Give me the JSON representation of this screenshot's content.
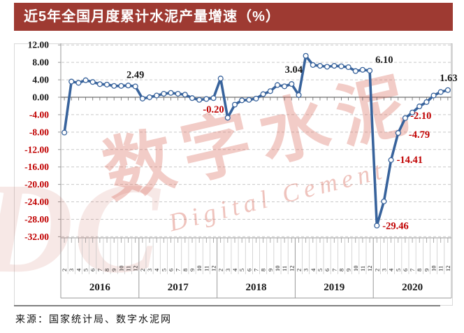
{
  "title": "近5年全国月度累计水泥产量增速（%）",
  "source": "来源：国家统计局、数字水泥网",
  "watermark": {
    "cn": "数字水泥",
    "en": "Digital Cement",
    "monogram": "DC"
  },
  "colors": {
    "title_bar_bg": "#9E3A32",
    "title_bar_text": "#ffffff",
    "line_blue": "#38639C",
    "negative_red": "#C00000",
    "positive_black": "#1a1a1a",
    "grid_gray": "#c9c9c9",
    "watermark_pink": "rgba(214,97,82,0.32)"
  },
  "chart_data": {
    "type": "line",
    "title": "近5年全国月度累计水泥产量增速（%）",
    "xlabel": "",
    "ylabel": "%",
    "ylim": [
      -32,
      12
    ],
    "ytick_step": 4,
    "yticks": [
      "12.00",
      "8.00",
      "4.00",
      "0.00",
      "-4.00",
      "-8.00",
      "-12.00",
      "-16.00",
      "-20.00",
      "-24.00",
      "-28.00",
      "-32.00"
    ],
    "grid": "horizontal-dashed",
    "legend": "none",
    "month_ticks_per_year": [
      "2",
      "3",
      "4",
      "5",
      "6",
      "7",
      "8",
      "9",
      "10",
      "11",
      "12"
    ],
    "years": [
      {
        "year": "2016",
        "values": [
          -8.1,
          3.6,
          3.3,
          3.9,
          3.5,
          3.0,
          2.9,
          2.6,
          2.6,
          2.7,
          2.49
        ]
      },
      {
        "year": "2017",
        "values": [
          -0.3,
          0.0,
          0.4,
          0.8,
          1.0,
          0.8,
          0.6,
          -0.2,
          -0.6,
          -0.4,
          -0.2
        ]
      },
      {
        "year": "2018",
        "values": [
          4.3,
          -4.7,
          -1.7,
          -0.7,
          -0.6,
          -0.3,
          0.7,
          1.4,
          2.8,
          2.5,
          3.04
        ]
      },
      {
        "year": "2019",
        "values": [
          0.5,
          9.5,
          7.4,
          7.2,
          7.0,
          7.2,
          7.1,
          6.9,
          6.0,
          6.3,
          6.1
        ]
      },
      {
        "year": "2020",
        "values": [
          -29.46,
          -23.9,
          -14.41,
          -8.2,
          -4.79,
          -3.5,
          -2.1,
          -1.1,
          0.4,
          1.2,
          1.63
        ]
      }
    ],
    "point_labels": [
      {
        "year": "2016",
        "month": "12",
        "text": "2.49",
        "negative": false
      },
      {
        "year": "2017",
        "month": "12",
        "text": "-0.20",
        "negative": true
      },
      {
        "year": "2018",
        "month": "12",
        "text": "3.04",
        "negative": false
      },
      {
        "year": "2019",
        "month": "12",
        "text": "6.10",
        "negative": false
      },
      {
        "year": "2020",
        "month": "2",
        "text": "-29.46",
        "negative": true
      },
      {
        "year": "2020",
        "month": "4",
        "text": "-14.41",
        "negative": true
      },
      {
        "year": "2020",
        "month": "6",
        "text": "-4.79",
        "negative": true
      },
      {
        "year": "2020",
        "month": "8",
        "text": "-2.10",
        "negative": true
      },
      {
        "year": "2020",
        "month": "12",
        "text": "1.63",
        "negative": false
      }
    ]
  }
}
